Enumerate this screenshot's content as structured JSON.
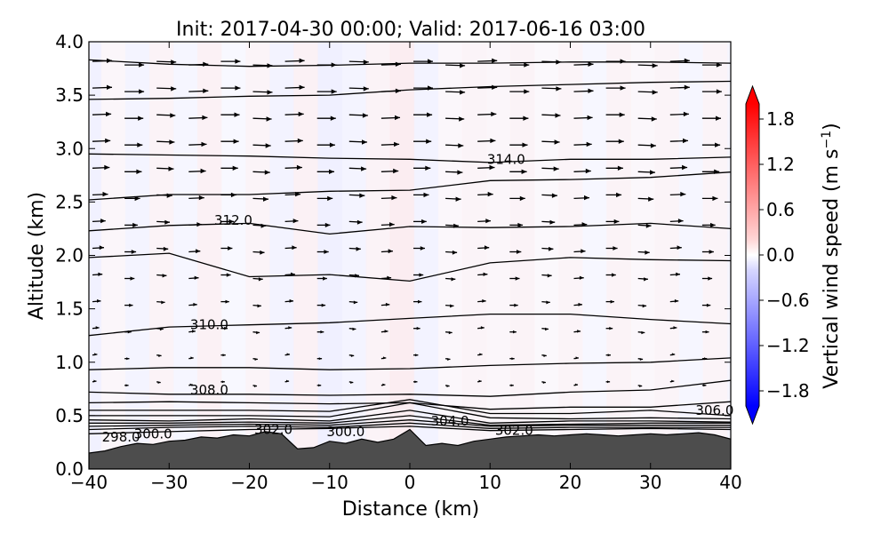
{
  "chart_data": {
    "type": "contour",
    "title": "Init: 2017-04-30 00:00; Valid: 2017-06-16 03:00",
    "xlabel": "Distance (km)",
    "ylabel": "Altitude (km)",
    "xlim": [
      -40,
      40
    ],
    "ylim": [
      0.0,
      4.0
    ],
    "x_ticks": [
      "−40",
      "−30",
      "−20",
      "−10",
      "0",
      "10",
      "20",
      "30",
      "40"
    ],
    "x_tick_values": [
      -40,
      -30,
      -20,
      -10,
      0,
      10,
      20,
      30,
      40
    ],
    "y_ticks": [
      "0.0",
      "0.5",
      "1.0",
      "1.5",
      "2.0",
      "2.5",
      "3.0",
      "3.5",
      "4.0"
    ],
    "y_tick_values": [
      0.0,
      0.5,
      1.0,
      1.5,
      2.0,
      2.5,
      3.0,
      3.5,
      4.0
    ],
    "colorbar": {
      "label": "Vertical wind speed (m s",
      "label_exponent": "−1",
      "label_close": ")",
      "range": [
        -2.0,
        2.0
      ],
      "extend": "both",
      "ticks": [
        "1.8",
        "1.2",
        "0.6",
        "0.0",
        "−0.6",
        "−1.2",
        "−1.8"
      ],
      "tick_values": [
        1.8,
        1.2,
        0.6,
        0.0,
        -0.6,
        -1.2,
        -1.8
      ],
      "cmap": "bwr"
    },
    "terrain": {
      "color": "#4d4d4d",
      "x": [
        -40,
        -38,
        -36,
        -34,
        -32,
        -30,
        -28,
        -26,
        -24,
        -22,
        -20,
        -18,
        -16,
        -14,
        -12,
        -10,
        -8,
        -6,
        -4,
        -2,
        0,
        2,
        4,
        6,
        8,
        10,
        12,
        14,
        16,
        18,
        20,
        22,
        24,
        26,
        28,
        30,
        32,
        34,
        36,
        38,
        40
      ],
      "height_km": [
        0.15,
        0.17,
        0.21,
        0.24,
        0.23,
        0.26,
        0.27,
        0.3,
        0.29,
        0.32,
        0.31,
        0.35,
        0.33,
        0.19,
        0.2,
        0.26,
        0.24,
        0.28,
        0.25,
        0.28,
        0.37,
        0.22,
        0.24,
        0.22,
        0.26,
        0.28,
        0.3,
        0.31,
        0.32,
        0.31,
        0.32,
        0.33,
        0.32,
        0.31,
        0.32,
        0.33,
        0.32,
        0.33,
        0.34,
        0.32,
        0.28
      ]
    },
    "theta_contours": [
      {
        "x": [
          -40,
          -30,
          -20,
          -10,
          0,
          10,
          20,
          30,
          40
        ],
        "y": [
          0.33,
          0.35,
          0.37,
          0.38,
          0.4,
          0.36,
          0.37,
          0.38,
          0.37
        ]
      },
      {
        "x": [
          -40,
          -30,
          -20,
          -10,
          0,
          10,
          20,
          30,
          40
        ],
        "y": [
          0.37,
          0.39,
          0.4,
          0.39,
          0.43,
          0.38,
          0.39,
          0.39,
          0.39
        ]
      },
      {
        "x": [
          -40,
          -30,
          -20,
          -10,
          0,
          10,
          20,
          30,
          40
        ],
        "y": [
          0.4,
          0.41,
          0.42,
          0.41,
          0.46,
          0.4,
          0.41,
          0.41,
          0.41
        ]
      },
      {
        "x": [
          -40,
          -30,
          -20,
          -10,
          0,
          10,
          20,
          30,
          40
        ],
        "y": [
          0.43,
          0.43,
          0.44,
          0.43,
          0.5,
          0.41,
          0.42,
          0.43,
          0.43
        ]
      },
      {
        "x": [
          -40,
          -30,
          -20,
          -10,
          0,
          10,
          20,
          30,
          40
        ],
        "y": [
          0.46,
          0.45,
          0.47,
          0.45,
          0.55,
          0.43,
          0.45,
          0.45,
          0.44
        ]
      },
      {
        "x": [
          -40,
          -30,
          -20,
          -10,
          0,
          10,
          20,
          30,
          40
        ],
        "y": [
          0.5,
          0.5,
          0.5,
          0.49,
          0.62,
          0.48,
          0.47,
          0.48,
          0.47
        ]
      },
      {
        "x": [
          -40,
          -30,
          -20,
          -10,
          0,
          10,
          20,
          30,
          40
        ],
        "y": [
          0.55,
          0.55,
          0.55,
          0.54,
          0.65,
          0.52,
          0.52,
          0.55,
          0.5
        ]
      },
      {
        "x": [
          -40,
          -30,
          -20,
          -10,
          0,
          10,
          20,
          30,
          40
        ],
        "y": [
          0.62,
          0.63,
          0.62,
          0.61,
          0.62,
          0.56,
          0.58,
          0.58,
          0.63
        ]
      },
      {
        "x": [
          -40,
          -30,
          -20,
          -10,
          0,
          10,
          20,
          30,
          40
        ],
        "y": [
          0.72,
          0.7,
          0.7,
          0.69,
          0.7,
          0.68,
          0.72,
          0.74,
          0.83
        ]
      },
      {
        "x": [
          -40,
          -30,
          -20,
          -10,
          0,
          10,
          20,
          30,
          40
        ],
        "y": [
          0.93,
          0.95,
          0.95,
          0.93,
          0.94,
          0.97,
          0.99,
          1.0,
          1.04
        ]
      },
      {
        "x": [
          -40,
          -30,
          -20,
          -10,
          0,
          10,
          20,
          30,
          40
        ],
        "y": [
          1.25,
          1.33,
          1.35,
          1.37,
          1.41,
          1.45,
          1.45,
          1.4,
          1.36
        ]
      },
      {
        "x": [
          -40,
          -30,
          -20,
          -10,
          0,
          10,
          20,
          30,
          40
        ],
        "y": [
          1.98,
          2.02,
          1.8,
          1.82,
          1.76,
          1.93,
          1.98,
          1.96,
          1.95
        ]
      },
      {
        "x": [
          -40,
          -30,
          -20,
          -10,
          0,
          10,
          20,
          30,
          40
        ],
        "y": [
          2.23,
          2.28,
          2.3,
          2.2,
          2.27,
          2.26,
          2.27,
          2.3,
          2.25
        ]
      },
      {
        "x": [
          -40,
          -30,
          -20,
          -10,
          0,
          10,
          20,
          30,
          40
        ],
        "y": [
          2.52,
          2.57,
          2.57,
          2.6,
          2.61,
          2.7,
          2.71,
          2.73,
          2.78
        ]
      },
      {
        "x": [
          -40,
          -30,
          -20,
          -10,
          0,
          10,
          20,
          30,
          40
        ],
        "y": [
          2.95,
          2.94,
          2.93,
          2.91,
          2.9,
          2.87,
          2.9,
          2.9,
          2.92
        ]
      },
      {
        "x": [
          -40,
          -30,
          -20,
          -10,
          0,
          10,
          20,
          30,
          40
        ],
        "y": [
          3.46,
          3.47,
          3.49,
          3.5,
          3.55,
          3.58,
          3.6,
          3.62,
          3.63
        ]
      },
      {
        "x": [
          -40,
          -30,
          -20,
          -10,
          0,
          10,
          20,
          30,
          40
        ],
        "y": [
          3.83,
          3.79,
          3.77,
          3.78,
          3.8,
          3.8,
          3.81,
          3.81,
          3.8
        ]
      }
    ],
    "contour_labels": [
      {
        "text": "314.0",
        "x": 12,
        "y": 2.9
      },
      {
        "text": "312.0",
        "x": -22,
        "y": 2.33
      },
      {
        "text": "310.0",
        "x": -25,
        "y": 1.35
      },
      {
        "text": "308.0",
        "x": -25,
        "y": 0.74
      },
      {
        "text": "306.0",
        "x": 38,
        "y": 0.55
      },
      {
        "text": "304.0",
        "x": 5,
        "y": 0.45
      },
      {
        "text": "302.0",
        "x": -17,
        "y": 0.37
      },
      {
        "text": "302.0",
        "x": 13,
        "y": 0.36
      },
      {
        "text": "300.0",
        "x": -8,
        "y": 0.35
      },
      {
        "text": "300.0",
        "x": -32,
        "y": 0.33
      },
      {
        "text": "298.0",
        "x": -36,
        "y": 0.3
      }
    ],
    "w_shading": [
      {
        "x": -40,
        "w": -0.15
      },
      {
        "x": -37,
        "w": 0.08
      },
      {
        "x": -34,
        "w": -0.1
      },
      {
        "x": -31,
        "w": 0.12
      },
      {
        "x": -28,
        "w": -0.08
      },
      {
        "x": -25,
        "w": 0.15
      },
      {
        "x": -22,
        "w": -0.05
      },
      {
        "x": -19,
        "w": 0.1
      },
      {
        "x": -16,
        "w": -0.12
      },
      {
        "x": -13,
        "w": 0.14
      },
      {
        "x": -10,
        "w": -0.16
      },
      {
        "x": -7,
        "w": -0.1
      },
      {
        "x": -4,
        "w": 0.12
      },
      {
        "x": -1,
        "w": 0.2
      },
      {
        "x": 2,
        "w": -0.12
      },
      {
        "x": 5,
        "w": 0.06
      },
      {
        "x": 8,
        "w": 0.1
      },
      {
        "x": 11,
        "w": 0.08
      },
      {
        "x": 14,
        "w": 0.12
      },
      {
        "x": 17,
        "w": 0.05
      },
      {
        "x": 20,
        "w": 0.1
      },
      {
        "x": 23,
        "w": -0.06
      },
      {
        "x": 26,
        "w": 0.12
      },
      {
        "x": 29,
        "w": 0.06
      },
      {
        "x": 32,
        "w": 0.1
      },
      {
        "x": 35,
        "w": -0.08
      },
      {
        "x": 38,
        "w": 0.1
      }
    ],
    "wind_vectors": {
      "note": "horizontal wind direction arrows, all pointing roughly eastward",
      "x": [
        -40,
        -36,
        -32,
        -28,
        -24,
        -20,
        -16,
        -12,
        -8,
        -4,
        0,
        4,
        8,
        12,
        16,
        20,
        24,
        28,
        32,
        36
      ],
      "levels": [
        {
          "y": 3.8,
          "speed": 1.0
        },
        {
          "y": 3.55,
          "speed": 1.0
        },
        {
          "y": 3.3,
          "speed": 0.95
        },
        {
          "y": 3.05,
          "speed": 0.9
        },
        {
          "y": 2.8,
          "speed": 0.85
        },
        {
          "y": 2.55,
          "speed": 0.75
        },
        {
          "y": 2.3,
          "speed": 0.6
        },
        {
          "y": 2.05,
          "speed": 0.5
        },
        {
          "y": 1.8,
          "speed": 0.4
        },
        {
          "y": 1.55,
          "speed": 0.3
        },
        {
          "y": 1.3,
          "speed": 0.2
        },
        {
          "y": 1.05,
          "speed": 0.08
        },
        {
          "y": 0.8,
          "speed": 0.03
        }
      ]
    }
  }
}
